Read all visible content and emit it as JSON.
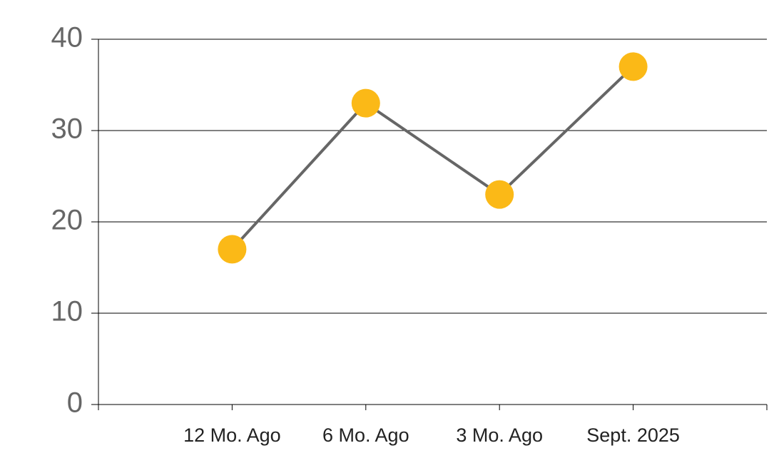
{
  "chart_data": {
    "type": "line",
    "categories": [
      "12 Mo. Ago",
      "6 Mo. Ago",
      "3 Mo. Ago",
      "Sept. 2025"
    ],
    "series": [
      {
        "values": [
          17,
          33,
          23,
          37
        ],
        "color": "#fbb917",
        "line_color": "#666666"
      }
    ],
    "ylim": [
      0,
      40
    ],
    "yticks": [
      0,
      10,
      20,
      30,
      40
    ],
    "grid": true
  }
}
